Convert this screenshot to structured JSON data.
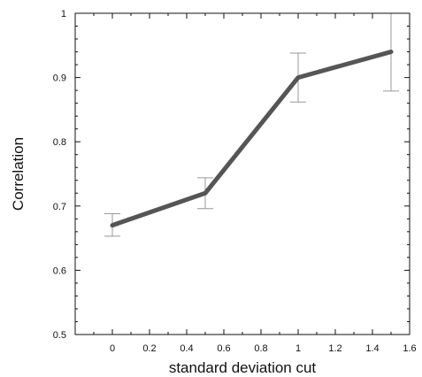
{
  "chart_data": {
    "type": "line",
    "title": "",
    "xlabel": "standard deviation  cut",
    "ylabel": "Correlation",
    "xlim": [
      -0.2,
      1.6
    ],
    "ylim": [
      0.5,
      1.0
    ],
    "xticks": [
      0,
      0.2,
      0.4,
      0.6,
      0.8,
      1,
      1.2,
      1.4,
      1.6
    ],
    "xtick_labels": [
      "0",
      "0.2",
      "0.4",
      "0.6",
      "0.8",
      "1",
      "1.2",
      "1.4",
      "1.6"
    ],
    "yticks": [
      0.5,
      0.6,
      0.7,
      0.8,
      0.9,
      1.0
    ],
    "ytick_labels": [
      "0.5",
      "0.6",
      "0.7",
      "0.8",
      "0.9",
      "1"
    ],
    "grid": false,
    "series": [
      {
        "x": [
          0,
          0.5,
          1,
          1.5
        ],
        "y": [
          0.67,
          0.72,
          0.9,
          0.94
        ],
        "error_low": [
          0.653,
          0.696,
          0.862,
          0.879
        ],
        "error_high": [
          0.688,
          0.744,
          0.938,
          1.0
        ],
        "color": "#555555"
      }
    ],
    "errorbar_color": "#999999",
    "axis_color": "#111111"
  }
}
